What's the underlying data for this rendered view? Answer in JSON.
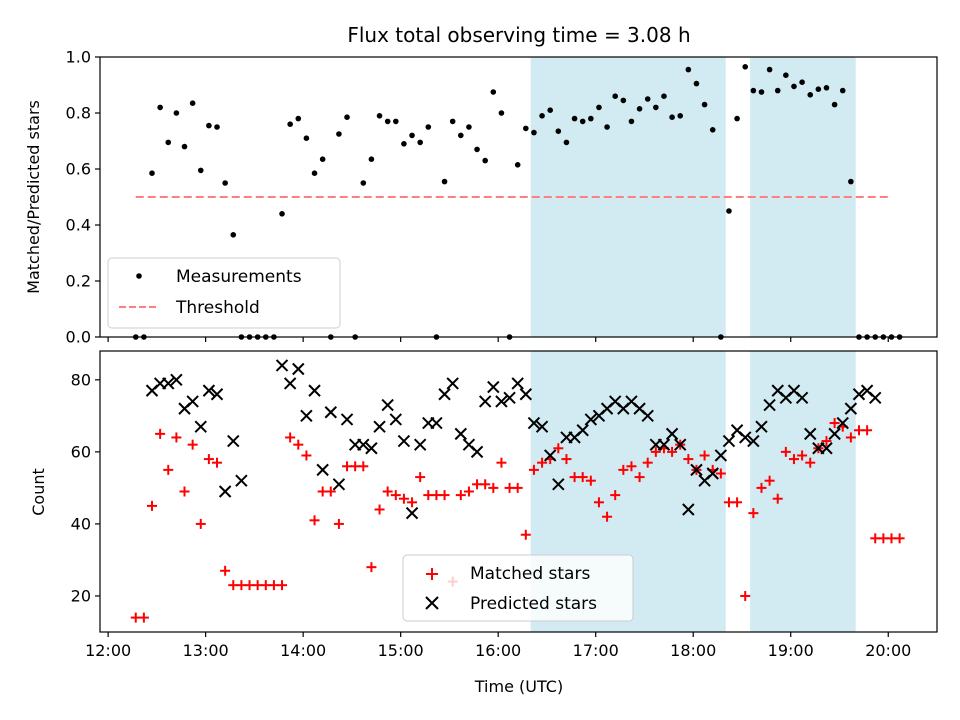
{
  "chart_data": [
    {
      "type": "scatter",
      "title": "Flux total observing time = 3.08 h",
      "xlabel": "",
      "ylabel": "Matched/Predicted stars",
      "ylim": [
        0,
        1.0
      ],
      "xlim": [
        "11:55",
        "20:30"
      ],
      "x_ticks": [
        "12:00",
        "13:00",
        "14:00",
        "15:00",
        "16:00",
        "17:00",
        "18:00",
        "19:00",
        "20:00"
      ],
      "x_tick_labels_visible": false,
      "y_ticks": [
        "0.0",
        "0.2",
        "0.4",
        "0.6",
        "0.8",
        "1.0"
      ],
      "shaded_regions": [
        [
          "16:20",
          "18:20"
        ],
        [
          "18:35",
          "19:40"
        ]
      ],
      "shade_color": "#add8e6",
      "legend_position": "lower left",
      "series": [
        {
          "name": "Measurements",
          "marker": "dot",
          "color": "#000000",
          "x": [
            "12:17",
            "12:22",
            "12:27",
            "12:32",
            "12:37",
            "12:42",
            "12:47",
            "12:52",
            "12:57",
            "13:02",
            "13:07",
            "13:12",
            "13:17",
            "13:22",
            "13:27",
            "13:32",
            "13:37",
            "13:42",
            "13:47",
            "13:52",
            "13:57",
            "14:02",
            "14:07",
            "14:12",
            "14:17",
            "14:22",
            "14:27",
            "14:32",
            "14:37",
            "14:42",
            "14:47",
            "14:52",
            "14:57",
            "15:02",
            "15:07",
            "15:12",
            "15:17",
            "15:22",
            "15:27",
            "15:32",
            "15:37",
            "15:42",
            "15:47",
            "15:52",
            "15:57",
            "16:02",
            "16:07",
            "16:12",
            "16:17",
            "16:22",
            "16:27",
            "16:32",
            "16:37",
            "16:42",
            "16:47",
            "16:52",
            "16:57",
            "17:02",
            "17:07",
            "17:12",
            "17:17",
            "17:22",
            "17:27",
            "17:32",
            "17:37",
            "17:42",
            "17:47",
            "17:52",
            "17:57",
            "18:02",
            "18:07",
            "18:12",
            "18:17",
            "18:22",
            "18:27",
            "18:32",
            "18:37",
            "18:42",
            "18:47",
            "18:52",
            "18:57",
            "19:02",
            "19:07",
            "19:12",
            "19:17",
            "19:22",
            "19:27",
            "19:32",
            "19:37",
            "19:42",
            "19:47",
            "19:52",
            "19:57",
            "20:02",
            "20:07"
          ],
          "y": [
            0,
            0,
            0.585,
            0.82,
            0.695,
            0.8,
            0.68,
            0.835,
            0.595,
            0.755,
            0.75,
            0.55,
            0.365,
            0,
            0,
            0,
            0,
            0,
            0.44,
            0.76,
            0.78,
            0.71,
            0.585,
            0.635,
            0,
            0.725,
            0.785,
            0,
            0.55,
            0.635,
            0.79,
            0.77,
            0.77,
            0.69,
            0.72,
            0.695,
            0.75,
            0,
            0.555,
            0.77,
            0.72,
            0.75,
            0.67,
            0.63,
            0.875,
            0.8,
            0,
            0.615,
            0.745,
            0.73,
            0.79,
            0.81,
            0.735,
            0.695,
            0.78,
            0.77,
            0.78,
            0.82,
            0.75,
            0.86,
            0.845,
            0.77,
            0.815,
            0.85,
            0.82,
            0.86,
            0.785,
            0.79,
            0.955,
            0.905,
            0.83,
            0.74,
            0,
            0.45,
            0.78,
            0.965,
            0.88,
            0.875,
            0.955,
            0.88,
            0.935,
            0.895,
            0.91,
            0.865,
            0.885,
            0.89,
            0.83,
            0.88,
            0.555,
            0,
            0,
            0,
            0,
            0,
            0
          ]
        },
        {
          "name": "Threshold",
          "marker": "dashed-line",
          "color": "#ff7f7f",
          "x": [
            "12:17",
            "20:02"
          ],
          "y": [
            0.5,
            0.5
          ]
        }
      ]
    },
    {
      "type": "scatter",
      "title": "",
      "xlabel": "Time (UTC)",
      "ylabel": "Count",
      "ylim": [
        10,
        88
      ],
      "xlim": [
        "11:55",
        "20:30"
      ],
      "x_ticks": [
        "12:00",
        "13:00",
        "14:00",
        "15:00",
        "16:00",
        "17:00",
        "18:00",
        "19:00",
        "20:00"
      ],
      "y_ticks": [
        "20",
        "40",
        "60",
        "80"
      ],
      "shaded_regions": [
        [
          "16:20",
          "18:20"
        ],
        [
          "18:35",
          "19:40"
        ]
      ],
      "shade_color": "#add8e6",
      "legend_position": "lower center",
      "series": [
        {
          "name": "Matched stars",
          "marker": "plus",
          "color": "#ff0000",
          "x": [
            "12:17",
            "12:22",
            "12:27",
            "12:32",
            "12:37",
            "12:42",
            "12:47",
            "12:52",
            "12:57",
            "13:02",
            "13:07",
            "13:12",
            "13:17",
            "13:22",
            "13:27",
            "13:32",
            "13:37",
            "13:42",
            "13:47",
            "13:52",
            "13:57",
            "14:02",
            "14:07",
            "14:12",
            "14:17",
            "14:22",
            "14:27",
            "14:32",
            "14:37",
            "14:42",
            "14:47",
            "14:52",
            "14:57",
            "15:02",
            "15:07",
            "15:12",
            "15:17",
            "15:22",
            "15:27",
            "15:32",
            "15:37",
            "15:42",
            "15:47",
            "15:52",
            "15:57",
            "16:02",
            "16:07",
            "16:12",
            "16:17",
            "16:22",
            "16:27",
            "16:32",
            "16:37",
            "16:42",
            "16:47",
            "16:52",
            "16:57",
            "17:02",
            "17:07",
            "17:12",
            "17:17",
            "17:22",
            "17:27",
            "17:32",
            "17:37",
            "17:42",
            "17:47",
            "17:52",
            "17:57",
            "18:02",
            "18:07",
            "18:12",
            "18:17",
            "18:22",
            "18:27",
            "18:32",
            "18:37",
            "18:42",
            "18:47",
            "18:52",
            "18:57",
            "19:02",
            "19:07",
            "19:12",
            "19:17",
            "19:22",
            "19:27",
            "19:32",
            "19:37",
            "19:42",
            "19:47",
            "19:52",
            "19:57",
            "20:02",
            "20:07"
          ],
          "y": [
            14,
            14,
            45,
            65,
            55,
            64,
            49,
            62,
            40,
            58,
            57,
            27,
            23,
            23,
            23,
            23,
            23,
            23,
            23,
            64,
            62,
            59,
            41,
            49,
            49,
            40,
            56,
            56,
            56,
            28,
            44,
            49,
            48,
            47,
            46,
            53,
            48,
            48,
            48,
            24,
            48,
            49,
            51,
            51,
            50,
            57,
            50,
            50,
            37,
            55,
            57,
            58,
            61,
            58,
            53,
            53,
            52,
            46,
            42,
            48,
            55,
            56,
            53,
            57,
            60,
            61,
            60,
            62,
            58,
            55,
            59,
            55,
            54,
            46,
            46,
            20,
            43,
            50,
            52,
            47,
            60,
            58,
            59,
            57,
            61,
            63,
            68,
            67,
            64,
            66,
            66,
            36,
            36,
            36,
            36
          ]
        },
        {
          "name": "Predicted stars",
          "marker": "x",
          "color": "#000000",
          "x": [
            "12:27",
            "12:32",
            "12:37",
            "12:42",
            "12:47",
            "12:52",
            "12:57",
            "13:02",
            "13:07",
            "13:12",
            "13:17",
            "13:22",
            "13:47",
            "13:52",
            "13:57",
            "14:02",
            "14:07",
            "14:12",
            "14:17",
            "14:22",
            "14:27",
            "14:32",
            "14:37",
            "14:42",
            "14:47",
            "14:52",
            "14:57",
            "15:02",
            "15:07",
            "15:12",
            "15:17",
            "15:22",
            "15:27",
            "15:32",
            "15:37",
            "15:42",
            "15:47",
            "15:52",
            "15:57",
            "16:02",
            "16:07",
            "16:12",
            "16:17",
            "16:22",
            "16:27",
            "16:32",
            "16:37",
            "16:42",
            "16:47",
            "16:52",
            "16:57",
            "17:02",
            "17:07",
            "17:12",
            "17:17",
            "17:22",
            "17:27",
            "17:32",
            "17:37",
            "17:42",
            "17:47",
            "17:52",
            "17:57",
            "18:02",
            "18:07",
            "18:12",
            "18:17",
            "18:22",
            "18:27",
            "18:32",
            "18:37",
            "18:42",
            "18:47",
            "18:52",
            "18:57",
            "19:02",
            "19:07",
            "19:12",
            "19:17",
            "19:22",
            "19:27",
            "19:32",
            "19:37",
            "19:42",
            "19:47",
            "19:52"
          ],
          "y": [
            77,
            79,
            79,
            80,
            72,
            74,
            67,
            77,
            76,
            49,
            63,
            52,
            84,
            79,
            83,
            70,
            77,
            55,
            71,
            51,
            69,
            62,
            62,
            61,
            67,
            73,
            69,
            63,
            43,
            62,
            68,
            68,
            76,
            79,
            65,
            62,
            60,
            74,
            78,
            74,
            75,
            79,
            76,
            68,
            67,
            59,
            51,
            64,
            64,
            66,
            69,
            70,
            72,
            74,
            72,
            74,
            72,
            70,
            62,
            62,
            65,
            62,
            44,
            55,
            52,
            54,
            59,
            63,
            66,
            64,
            63,
            67,
            73,
            77,
            75,
            77,
            75,
            65,
            61,
            61,
            65,
            68,
            72,
            76,
            77,
            75
          ]
        }
      ]
    }
  ]
}
